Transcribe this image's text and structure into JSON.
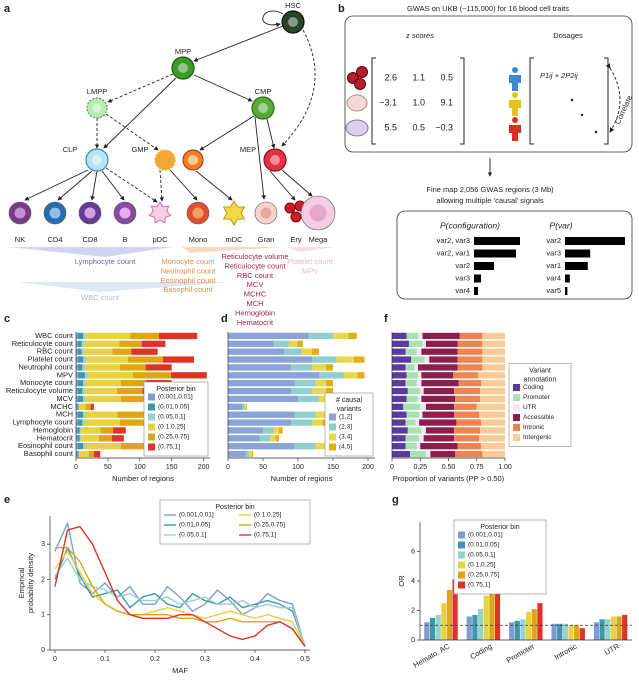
{
  "panel_labels": [
    "a",
    "b",
    "c",
    "d",
    "e",
    "f",
    "g"
  ],
  "panel_a": {
    "nodes": [
      "HSC",
      "MPP",
      "LMPP",
      "CMP",
      "CLP",
      "GMP",
      "MEP"
    ],
    "cells": [
      "NK",
      "CD4",
      "CD8",
      "B",
      "pDC",
      "Mono",
      "mDC",
      "Gran",
      "Ery",
      "Mega"
    ],
    "trait_groups": [
      [
        "Lymphocyte count"
      ],
      [
        "Monocyte count",
        "Neutrophil count",
        "Eosinophil count",
        "Basophil count"
      ],
      [
        "Reticulocyte volume",
        "Reticulocyte count",
        "RBC count",
        "MCV",
        "MCHC",
        "MCH",
        "Hemoglobin",
        "Hematocrit"
      ],
      [
        "Platelet count",
        "MPV"
      ]
    ],
    "wbc": "WBC count"
  },
  "panel_b": {
    "title": "GWAS on UKB (~115,000) for 16 blood cell traits",
    "zscores_label": "z scores",
    "dosages_label": "Dosages",
    "zscores": [
      [
        "2.6",
        "1.1",
        "0.5"
      ],
      [
        "−3.1",
        "1.0",
        "9.1"
      ],
      [
        "5.5",
        "0.5",
        "−0.3"
      ]
    ],
    "dosage_formula": "P1ij + 2P2ij",
    "correlate": "Correlate",
    "finemap": [
      "Fine map 2,056 GWAS regions (3 Mb)",
      "allowing multiple ‘causal’ signals"
    ],
    "configuration": {
      "header": "P(configuration)",
      "labels": [
        "var2, var3",
        "var2, var1",
        "var2",
        "var3",
        "var4"
      ],
      "values": [
        0.46,
        0.42,
        0.2,
        0.07,
        0.04
      ]
    },
    "var": {
      "header": "P(var)",
      "labels": [
        "var2",
        "var3",
        "var1",
        "var4",
        "var5"
      ],
      "values": [
        1.0,
        0.42,
        0.38,
        0.08,
        0.04
      ]
    }
  },
  "chart_data": [
    {
      "type": "barh",
      "stacked": true,
      "categories": [
        "WBC count",
        "Reticulocyte count",
        "RBC count",
        "Platelet count",
        "Neutrophil count",
        "MPV",
        "Monocyte count",
        "Reticulocyte volume",
        "MCV",
        "MCHC",
        "MCH",
        "Lymphocyte count",
        "Hemoglobin",
        "Hematocrit",
        "Eosinophil count",
        "Basophil count"
      ],
      "series": [
        {
          "name": "(0.001,0.01]",
          "color": "#7f9dd3",
          "values": [
            3,
            3,
            3,
            3,
            3,
            4,
            3,
            3,
            3,
            2,
            3,
            3,
            2,
            2,
            3,
            2
          ]
        },
        {
          "name": "(0.01,0.05]",
          "color": "#3f97ad",
          "values": [
            8,
            6,
            6,
            8,
            7,
            10,
            8,
            7,
            8,
            2,
            8,
            7,
            4,
            4,
            8,
            2
          ]
        },
        {
          "name": "(0.05,0.1]",
          "color": "#97d3c9",
          "values": [
            4,
            4,
            3,
            5,
            4,
            5,
            4,
            4,
            4,
            1,
            4,
            4,
            2,
            2,
            4,
            1
          ]
        },
        {
          "name": "(0.1,0.25]",
          "color": "#e6d243",
          "values": [
            70,
            55,
            45,
            65,
            55,
            70,
            55,
            50,
            55,
            10,
            50,
            55,
            30,
            28,
            55,
            15
          ]
        },
        {
          "name": "(0.25,0.75]",
          "color": "#dfa516",
          "values": [
            45,
            35,
            30,
            55,
            40,
            60,
            40,
            40,
            45,
            8,
            45,
            40,
            20,
            20,
            40,
            8
          ]
        },
        {
          "name": "(0.75,1]",
          "color": "#df3325",
          "values": [
            60,
            37,
            41,
            49,
            41,
            56,
            40,
            44,
            48,
            5,
            45,
            41,
            20,
            19,
            45,
            10
          ]
        }
      ],
      "xlim": [
        0,
        210
      ],
      "xticks": [
        0,
        50,
        100,
        150,
        200
      ],
      "xlabel": "Number of regions",
      "legend_title": "Posterior bin",
      "legend": "lower right"
    },
    {
      "type": "barh",
      "stacked": true,
      "series": [
        {
          "name": "(1,2]",
          "color": "#8aa4d8",
          "values": [
            115,
            65,
            80,
            120,
            90,
            130,
            95,
            90,
            100,
            20,
            95,
            90,
            50,
            45,
            95,
            25
          ]
        },
        {
          "name": "(2,3]",
          "color": "#90cfd0",
          "values": [
            35,
            22,
            25,
            35,
            30,
            35,
            30,
            30,
            30,
            4,
            30,
            30,
            15,
            15,
            30,
            6
          ]
        },
        {
          "name": "(3,4]",
          "color": "#e8d850",
          "values": [
            22,
            12,
            15,
            25,
            20,
            20,
            15,
            20,
            20,
            2,
            20,
            15,
            8,
            8,
            20,
            3
          ]
        },
        {
          "name": "(4,5]",
          "color": "#e0b010",
          "values": [
            12,
            8,
            10,
            15,
            10,
            10,
            10,
            10,
            12,
            1,
            10,
            10,
            5,
            5,
            10,
            2
          ]
        }
      ],
      "xlim": [
        0,
        210
      ],
      "xticks": [
        0,
        50,
        100,
        150,
        200
      ],
      "xlabel": "Number of regions",
      "legend_title": [
        "# causal",
        "variants"
      ],
      "legend": "lower right"
    },
    {
      "type": "barh",
      "stacked": true,
      "series": [
        {
          "name": "Coding",
          "color": "#5a3a9a",
          "values": [
            0.13,
            0.15,
            0.12,
            0.17,
            0.12,
            0.13,
            0.12,
            0.14,
            0.13,
            0.1,
            0.13,
            0.12,
            0.14,
            0.12,
            0.12,
            0.16
          ]
        },
        {
          "name": "Promoter",
          "color": "#a9e2b2",
          "values": [
            0.1,
            0.12,
            0.1,
            0.12,
            0.08,
            0.1,
            0.1,
            0.11,
            0.1,
            0.15,
            0.11,
            0.09,
            0.12,
            0.12,
            0.1,
            0.14
          ]
        },
        {
          "name": "UTR",
          "color": "#eee6f6",
          "values": [
            0.04,
            0.03,
            0.04,
            0.04,
            0.03,
            0.03,
            0.04,
            0.03,
            0.03,
            0.05,
            0.03,
            0.03,
            0.04,
            0.04,
            0.03,
            0.04
          ]
        },
        {
          "name": "Accessible",
          "color": "#8c1d4c",
          "values": [
            0.33,
            0.28,
            0.32,
            0.25,
            0.35,
            0.28,
            0.33,
            0.27,
            0.3,
            0.25,
            0.28,
            0.33,
            0.25,
            0.27,
            0.33,
            0.22
          ]
        },
        {
          "name": "Intronic",
          "color": "#f08352",
          "values": [
            0.2,
            0.22,
            0.22,
            0.22,
            0.22,
            0.22,
            0.2,
            0.23,
            0.22,
            0.2,
            0.22,
            0.22,
            0.23,
            0.22,
            0.21,
            0.24
          ]
        },
        {
          "name": "Intergenic",
          "color": "#f8cc94",
          "values": [
            0.2,
            0.2,
            0.2,
            0.2,
            0.2,
            0.24,
            0.21,
            0.22,
            0.22,
            0.25,
            0.23,
            0.21,
            0.22,
            0.23,
            0.21,
            0.2
          ]
        }
      ],
      "xlim": [
        0,
        1
      ],
      "xticks": [
        0,
        0.25,
        {
          "value": 0.5,
          "label": "0.50"
        },
        0.75,
        {
          "value": 1,
          "label": "1.00"
        }
      ],
      "xlabel": "Proportion of variants (PP > 0.50)",
      "legend_title": [
        "Variant",
        "annotation"
      ],
      "legend": "right"
    },
    {
      "type": "line",
      "x": [
        0,
        0.025,
        0.05,
        0.075,
        0.1,
        0.125,
        0.15,
        0.175,
        0.2,
        0.225,
        0.25,
        0.275,
        0.3,
        0.325,
        0.35,
        0.375,
        0.4,
        0.425,
        0.45,
        0.475,
        0.5
      ],
      "series": [
        {
          "name": "(0.001,0.01]",
          "color": "#7f9dd3",
          "values": [
            2.8,
            3.6,
            1.9,
            1.6,
            1.9,
            1.5,
            1.8,
            1.3,
            1.3,
            1.8,
            1.5,
            1.1,
            1.3,
            1.7,
            1.4,
            1.0,
            1.2,
            1.6,
            1.4,
            1.3,
            0.1
          ]
        },
        {
          "name": "(0.01,0.05]",
          "color": "#3f97ad",
          "values": [
            2.0,
            2.9,
            2.1,
            1.5,
            1.6,
            1.7,
            1.2,
            1.5,
            1.6,
            1.3,
            1.2,
            1.6,
            1.4,
            1.3,
            1.5,
            1.2,
            1.3,
            1.4,
            1.3,
            1.1,
            0.1
          ]
        },
        {
          "name": "(0.05,0.1]",
          "color": "#97d3c9",
          "values": [
            2.1,
            2.6,
            2.0,
            1.8,
            1.7,
            1.5,
            1.6,
            1.4,
            1.4,
            1.5,
            1.3,
            1.4,
            1.5,
            1.3,
            1.3,
            1.4,
            1.2,
            1.3,
            1.2,
            1.2,
            0.1
          ]
        },
        {
          "name": "(0.1,0.25]",
          "color": "#e6d243",
          "values": [
            2.3,
            2.8,
            2.2,
            1.6,
            1.3,
            1.1,
            1.0,
            1.0,
            1.1,
            1.2,
            1.1,
            1.0,
            0.9,
            1.0,
            1.1,
            1.0,
            0.9,
            1.0,
            0.9,
            0.8,
            0.1
          ]
        },
        {
          "name": "(0.25,0.75]",
          "color": "#dfa516",
          "values": [
            2.9,
            2.9,
            2.5,
            1.8,
            1.3,
            1.1,
            1.0,
            1.0,
            1.0,
            1.0,
            0.9,
            0.9,
            0.8,
            0.8,
            0.9,
            0.8,
            0.8,
            0.8,
            0.8,
            0.6,
            0.1
          ]
        },
        {
          "name": "(0.75,1]",
          "color": "#df3325",
          "values": [
            1.8,
            3.4,
            3.5,
            3.0,
            2.2,
            1.4,
            1.0,
            0.9,
            0.9,
            0.9,
            1.0,
            1.0,
            0.8,
            0.6,
            0.4,
            0.3,
            0.4,
            0.7,
            0.8,
            0.6,
            0.1
          ]
        }
      ],
      "xlim": [
        -0.01,
        0.51
      ],
      "xticks": [
        0,
        0.1,
        0.2,
        0.3,
        0.4,
        0.5
      ],
      "ylim": [
        0,
        3.8
      ],
      "yticks": [
        0,
        1,
        2,
        3
      ],
      "xlabel": "MAF",
      "ylabel": [
        "Empirical",
        "probability density"
      ],
      "legend_title": "Posterior bin",
      "legend": "upper right",
      "legend_columns": 2
    },
    {
      "type": "grouped_bar",
      "categories": [
        "Hemato. AC",
        "Coding",
        "Promoter",
        "Intronic",
        "UTR"
      ],
      "series": [
        {
          "name": "(0.001,0.01]",
          "color": "#7f9dd3",
          "values": [
            1.2,
            1.6,
            1.2,
            1.1,
            1.2
          ]
        },
        {
          "name": "(0.01,0.05]",
          "color": "#3f97ad",
          "values": [
            1.5,
            1.7,
            1.3,
            1.1,
            1.4
          ]
        },
        {
          "name": "(0.05,0.1]",
          "color": "#97d3c9",
          "values": [
            1.7,
            2.1,
            1.4,
            1.1,
            1.4
          ]
        },
        {
          "name": "(0.1,0.25]",
          "color": "#e6d243",
          "values": [
            2.5,
            3.0,
            1.9,
            1.0,
            1.6
          ]
        },
        {
          "name": "(0.25,0.75]",
          "color": "#dfa516",
          "values": [
            3.4,
            4.2,
            2.1,
            1.0,
            1.6
          ]
        },
        {
          "name": "(0.75,1]",
          "color": "#df3325",
          "values": [
            4.1,
            7.6,
            2.5,
            0.8,
            1.7
          ]
        }
      ],
      "ylim": [
        0,
        8
      ],
      "yticks": [
        0,
        2,
        4,
        6
      ],
      "ylabel": "OR",
      "refline": 1,
      "legend_title": "Posterior bin",
      "legend": "upper left"
    }
  ]
}
